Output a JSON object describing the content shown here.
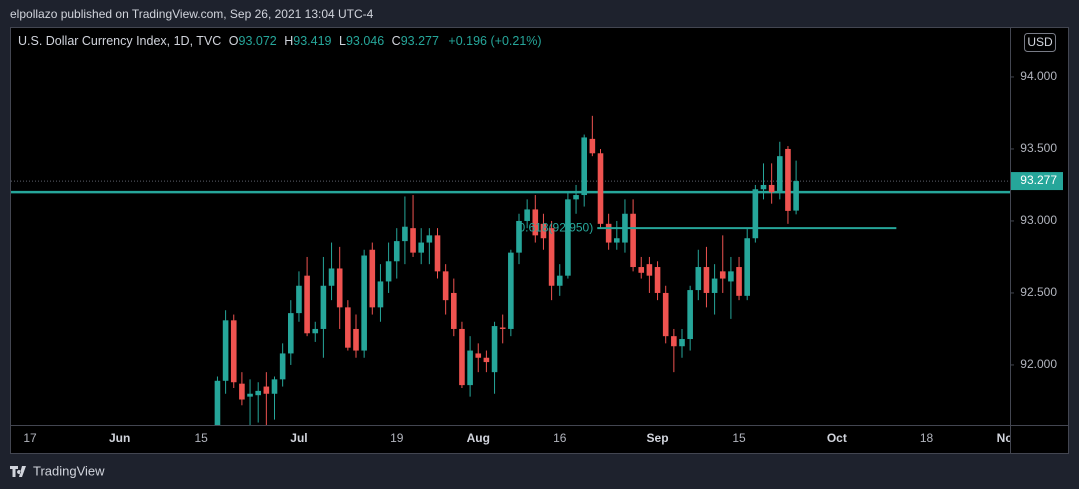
{
  "header": {
    "text": "elpollazo published on TradingView.com, Sep 26, 2021 13:04 UTC-4"
  },
  "chart_data": {
    "type": "candlestick",
    "title": "U.S. Dollar Currency Index, 1D, TVC",
    "currency": "USD",
    "legend": {
      "open_label": "O",
      "open": 93.072,
      "high_label": "H",
      "high": 93.419,
      "low_label": "L",
      "low": 93.046,
      "close_label": "C",
      "close": 93.277,
      "change": "+0.196 (+0.21%)"
    },
    "categories": [
      "17",
      null,
      null,
      null,
      null,
      null,
      null,
      null,
      null,
      null,
      null,
      "Jun",
      null,
      null,
      null,
      null,
      null,
      null,
      null,
      null,
      null,
      "15",
      null,
      null,
      null,
      null,
      null,
      null,
      null,
      null,
      null,
      null,
      null,
      "Jul",
      null,
      null,
      null,
      null,
      null,
      null,
      null,
      null,
      null,
      null,
      null,
      "19",
      null,
      null,
      null,
      null,
      null,
      null,
      null,
      null,
      null,
      "Aug",
      null,
      null,
      null,
      null,
      null,
      null,
      null,
      null,
      null,
      "16",
      null,
      null,
      null,
      null,
      null,
      null,
      null,
      null,
      null,
      null,
      null,
      "Sep",
      null,
      null,
      null,
      null,
      null,
      null,
      null,
      null,
      null,
      "15",
      null,
      null,
      null,
      null,
      null,
      null,
      null,
      null,
      null,
      null,
      null,
      "Oct",
      null,
      null,
      null,
      null,
      null,
      null,
      null,
      null,
      null,
      null,
      "18",
      null,
      null,
      null,
      null,
      null,
      null,
      null,
      null,
      null,
      "Nov"
    ],
    "open": [
      null,
      null,
      null,
      null,
      null,
      null,
      null,
      null,
      null,
      null,
      null,
      null,
      null,
      null,
      null,
      null,
      null,
      null,
      null,
      null,
      null,
      null,
      null,
      91.0,
      91.89,
      92.31,
      91.87,
      91.78,
      91.79,
      91.85,
      91.8,
      91.9,
      92.08,
      92.36,
      92.62,
      92.22,
      92.25,
      92.55,
      92.67,
      92.4,
      92.25,
      92.1,
      92.8,
      92.4,
      92.58,
      92.72,
      92.86,
      92.95,
      92.78,
      92.85,
      92.9,
      92.65,
      92.5,
      92.25,
      91.86,
      92.08,
      92.05,
      91.95,
      92.26,
      92.25,
      92.78,
      93.0,
      93.08,
      92.98,
      92.95,
      92.55,
      92.62,
      93.15,
      93.18,
      93.57,
      93.47,
      92.98,
      92.85,
      92.85,
      93.05,
      92.68,
      92.7,
      92.68,
      92.5,
      92.2,
      92.13,
      92.18,
      92.52,
      92.68,
      92.5,
      92.65,
      92.58,
      92.68,
      92.48,
      92.88,
      93.22,
      93.25,
      93.2,
      93.5,
      93.072,
      null,
      null,
      null,
      null,
      null,
      null,
      null,
      null,
      null,
      null,
      null,
      null,
      null,
      null,
      null,
      null,
      null,
      null,
      null,
      null,
      null,
      null,
      null,
      null,
      null,
      null
    ],
    "high": [
      null,
      null,
      null,
      null,
      null,
      null,
      null,
      null,
      null,
      null,
      null,
      null,
      null,
      null,
      null,
      null,
      null,
      null,
      null,
      null,
      null,
      null,
      null,
      91.92,
      92.38,
      92.35,
      91.95,
      91.9,
      91.88,
      91.95,
      91.92,
      92.15,
      92.45,
      92.65,
      92.75,
      92.3,
      92.75,
      92.85,
      92.82,
      92.45,
      92.35,
      92.8,
      92.85,
      92.7,
      92.85,
      92.95,
      93.17,
      93.18,
      92.95,
      92.95,
      92.95,
      92.7,
      92.6,
      92.3,
      92.2,
      92.15,
      92.1,
      92.3,
      92.35,
      92.8,
      93.05,
      93.15,
      93.18,
      93.05,
      93.0,
      92.7,
      93.2,
      93.25,
      93.6,
      93.73,
      93.5,
      93.05,
      93.0,
      93.15,
      93.15,
      92.75,
      92.75,
      92.72,
      92.55,
      92.25,
      92.25,
      92.55,
      92.8,
      92.82,
      92.7,
      92.9,
      92.75,
      92.75,
      92.95,
      93.25,
      93.4,
      93.4,
      93.55,
      93.52,
      93.419,
      null,
      null,
      null,
      null,
      null,
      null,
      null,
      null,
      null,
      null,
      null,
      null,
      null,
      null,
      null,
      null,
      null,
      null,
      null,
      null,
      null,
      null,
      null,
      null,
      null,
      null
    ],
    "low": [
      null,
      null,
      null,
      null,
      null,
      null,
      null,
      null,
      null,
      null,
      null,
      null,
      null,
      null,
      null,
      null,
      null,
      null,
      null,
      null,
      null,
      null,
      null,
      90.98,
      91.8,
      91.84,
      91.72,
      91.52,
      91.6,
      91.5,
      91.62,
      91.85,
      92.0,
      92.3,
      92.2,
      92.16,
      92.05,
      92.45,
      92.25,
      92.1,
      92.05,
      92.05,
      92.35,
      92.3,
      92.5,
      92.6,
      92.7,
      92.75,
      92.7,
      92.7,
      92.6,
      92.35,
      92.2,
      91.84,
      91.78,
      91.95,
      91.95,
      91.8,
      92.15,
      92.2,
      92.7,
      92.95,
      92.85,
      92.8,
      92.45,
      92.48,
      92.6,
      93.05,
      93.1,
      93.45,
      92.95,
      92.8,
      92.8,
      92.78,
      92.65,
      92.6,
      92.5,
      92.45,
      92.15,
      91.95,
      92.05,
      92.1,
      92.45,
      92.4,
      92.35,
      92.5,
      92.32,
      92.45,
      92.45,
      92.85,
      93.15,
      93.12,
      93.15,
      92.98,
      93.046,
      null,
      null,
      null,
      null,
      null,
      null,
      null,
      null,
      null,
      null,
      null,
      null,
      null,
      null,
      null,
      null,
      null,
      null,
      null,
      null,
      null,
      null,
      null,
      null,
      null,
      null
    ],
    "close": [
      null,
      null,
      null,
      null,
      null,
      null,
      null,
      null,
      null,
      null,
      null,
      null,
      null,
      null,
      null,
      null,
      null,
      null,
      null,
      null,
      null,
      null,
      null,
      91.89,
      92.31,
      91.88,
      91.76,
      91.8,
      91.82,
      91.8,
      91.9,
      92.08,
      92.36,
      92.55,
      92.22,
      92.25,
      92.55,
      92.67,
      92.4,
      92.12,
      92.1,
      92.76,
      92.4,
      92.58,
      92.72,
      92.86,
      92.96,
      92.78,
      92.85,
      92.9,
      92.65,
      92.45,
      92.25,
      91.86,
      92.1,
      92.05,
      92.02,
      92.27,
      92.25,
      92.78,
      93.0,
      93.08,
      92.9,
      92.88,
      92.55,
      92.62,
      93.15,
      93.18,
      93.58,
      93.47,
      92.98,
      92.85,
      92.88,
      93.05,
      92.68,
      92.64,
      92.62,
      92.5,
      92.2,
      92.13,
      92.18,
      92.52,
      92.68,
      92.5,
      92.6,
      92.6,
      92.65,
      92.48,
      92.88,
      93.22,
      93.25,
      93.2,
      93.45,
      93.07,
      93.277,
      null,
      null,
      null,
      null,
      null,
      null,
      null,
      null,
      null,
      null,
      null,
      null,
      null,
      null,
      null,
      null,
      null,
      null,
      null,
      null,
      null,
      null,
      null,
      null,
      null,
      null
    ],
    "up_color": "#26a69a",
    "down_color": "#ef5350",
    "ylim": [
      91.583,
      94.34
    ],
    "yticks": [
      {
        "value": 92,
        "label": "92.000"
      },
      {
        "value": 92.5,
        "label": "92.500"
      },
      {
        "value": 93,
        "label": "93.000"
      },
      {
        "value": 93.5,
        "label": "93.500"
      },
      {
        "value": 94,
        "label": "94.000"
      }
    ],
    "grid": false,
    "hlines": [
      {
        "value": 93.2,
        "color": "#26a69a"
      }
    ],
    "fib": {
      "value": 92.95,
      "label": "0.618(92.950)",
      "color": "#26a69a"
    }
  },
  "footer": {
    "brand": "TradingView"
  }
}
